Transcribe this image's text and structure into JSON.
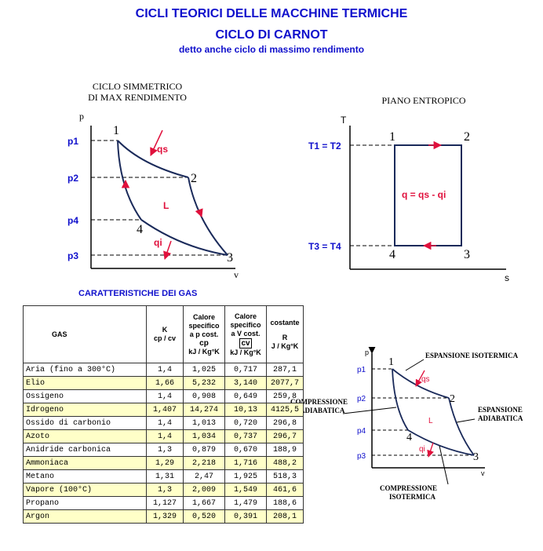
{
  "title": {
    "line1": "CICLI TEORICI DELLE MACCHINE TERMICHE",
    "line2": "CICLO  DI CARNOT",
    "line3": "detto anche ciclo di massimo rendimento"
  },
  "diagram_pv": {
    "caption_line1": "CICLO SIMMETRICO",
    "caption_line2": "DI MAX RENDIMENTO",
    "axis_y": "p",
    "axis_x": "v",
    "p1": "p1",
    "p2": "p2",
    "p4": "p4",
    "p3": "p3",
    "pt1": "1",
    "pt2": "2",
    "pt3": "3",
    "pt4": "4",
    "qs": "qs",
    "qi": "qi",
    "L": "L"
  },
  "diagram_ts": {
    "caption": "PIANO ENTROPICO",
    "axis_y": "T",
    "axis_x": "s",
    "t_high": "T1 = T2",
    "t_low": "T3 = T4",
    "pt1": "1",
    "pt2": "2",
    "pt3": "3",
    "pt4": "4",
    "formula": "q = qs - qi"
  },
  "table": {
    "title": "CARATTERISTICHE DEI GAS",
    "headers": {
      "gas": "GAS",
      "k": [
        "K",
        "cp / cv"
      ],
      "cp": [
        "Calore",
        "specifico",
        "a p cost.",
        "cp",
        "kJ / Kg°K"
      ],
      "cv": [
        "Calore",
        "specifico",
        "a V cost.",
        "cv",
        "kJ / Kg°K"
      ],
      "r": [
        "costante",
        "",
        "R",
        "J / Kg°K"
      ]
    },
    "rows": [
      {
        "gas": "Aria (fino a 300°C)",
        "k": "1,4",
        "cp": "1,025",
        "cv": "0,717",
        "r": "287,1",
        "hl": false
      },
      {
        "gas": "Elio",
        "k": "1,66",
        "cp": "5,232",
        "cv": "3,140",
        "r": "2077,7",
        "hl": true
      },
      {
        "gas": "Ossigeno",
        "k": "1,4",
        "cp": "0,908",
        "cv": "0,649",
        "r": "259,8",
        "hl": false
      },
      {
        "gas": "Idrogeno",
        "k": "1,407",
        "cp": "14,274",
        "cv": "10,13",
        "r": "4125,5",
        "hl": true
      },
      {
        "gas": "Ossido di carbonio",
        "k": "1,4",
        "cp": "1,013",
        "cv": "0,720",
        "r": "296,8",
        "hl": false
      },
      {
        "gas": "Azoto",
        "k": "1,4",
        "cp": "1,034",
        "cv": "0,737",
        "r": "296,7",
        "hl": true
      },
      {
        "gas": "Anidride carbonica",
        "k": "1,3",
        "cp": "0,879",
        "cv": "0,670",
        "r": "188,9",
        "hl": false
      },
      {
        "gas": "Ammoniaca",
        "k": "1,29",
        "cp": "2,218",
        "cv": "1,716",
        "r": "488,2",
        "hl": true
      },
      {
        "gas": "Metano",
        "k": "1,31",
        "cp": "2,47",
        "cv": "1,925",
        "r": "518,3",
        "hl": false
      },
      {
        "gas": "Vapore (100°C)",
        "k": "1,3",
        "cp": "2,009",
        "cv": "1,549",
        "r": "461,6",
        "hl": true
      },
      {
        "gas": "Propano",
        "k": "1,127",
        "cp": "1,667",
        "cv": "1,479",
        "r": "188,6",
        "hl": false
      },
      {
        "gas": "Argon",
        "k": "1,329",
        "cp": "0,520",
        "cv": "0,391",
        "r": "208,1",
        "hl": true
      }
    ]
  },
  "diagram_small": {
    "axis_y": "p",
    "axis_x": "v",
    "p1": "p1",
    "p2": "p2",
    "p4": "p4",
    "p3": "p3",
    "pt1": "1",
    "pt2": "2",
    "pt3": "3",
    "pt4": "4",
    "qs": "qs",
    "qi": "qi",
    "L": "L",
    "exp_iso": "ESPANSIONE ISOTERMICA",
    "comp_adia": [
      "COMPRESSIONE",
      "ADIABATICA"
    ],
    "exp_adia": [
      "ESPANSIONE",
      "ADIABATICA"
    ],
    "comp_iso": [
      "COMPRESSIONE",
      "ISOTERMICA"
    ]
  },
  "colors": {
    "title": "#1010cc",
    "label": "#1010cc",
    "arrow": "#e0103c",
    "highlight": "#ffffc8"
  }
}
